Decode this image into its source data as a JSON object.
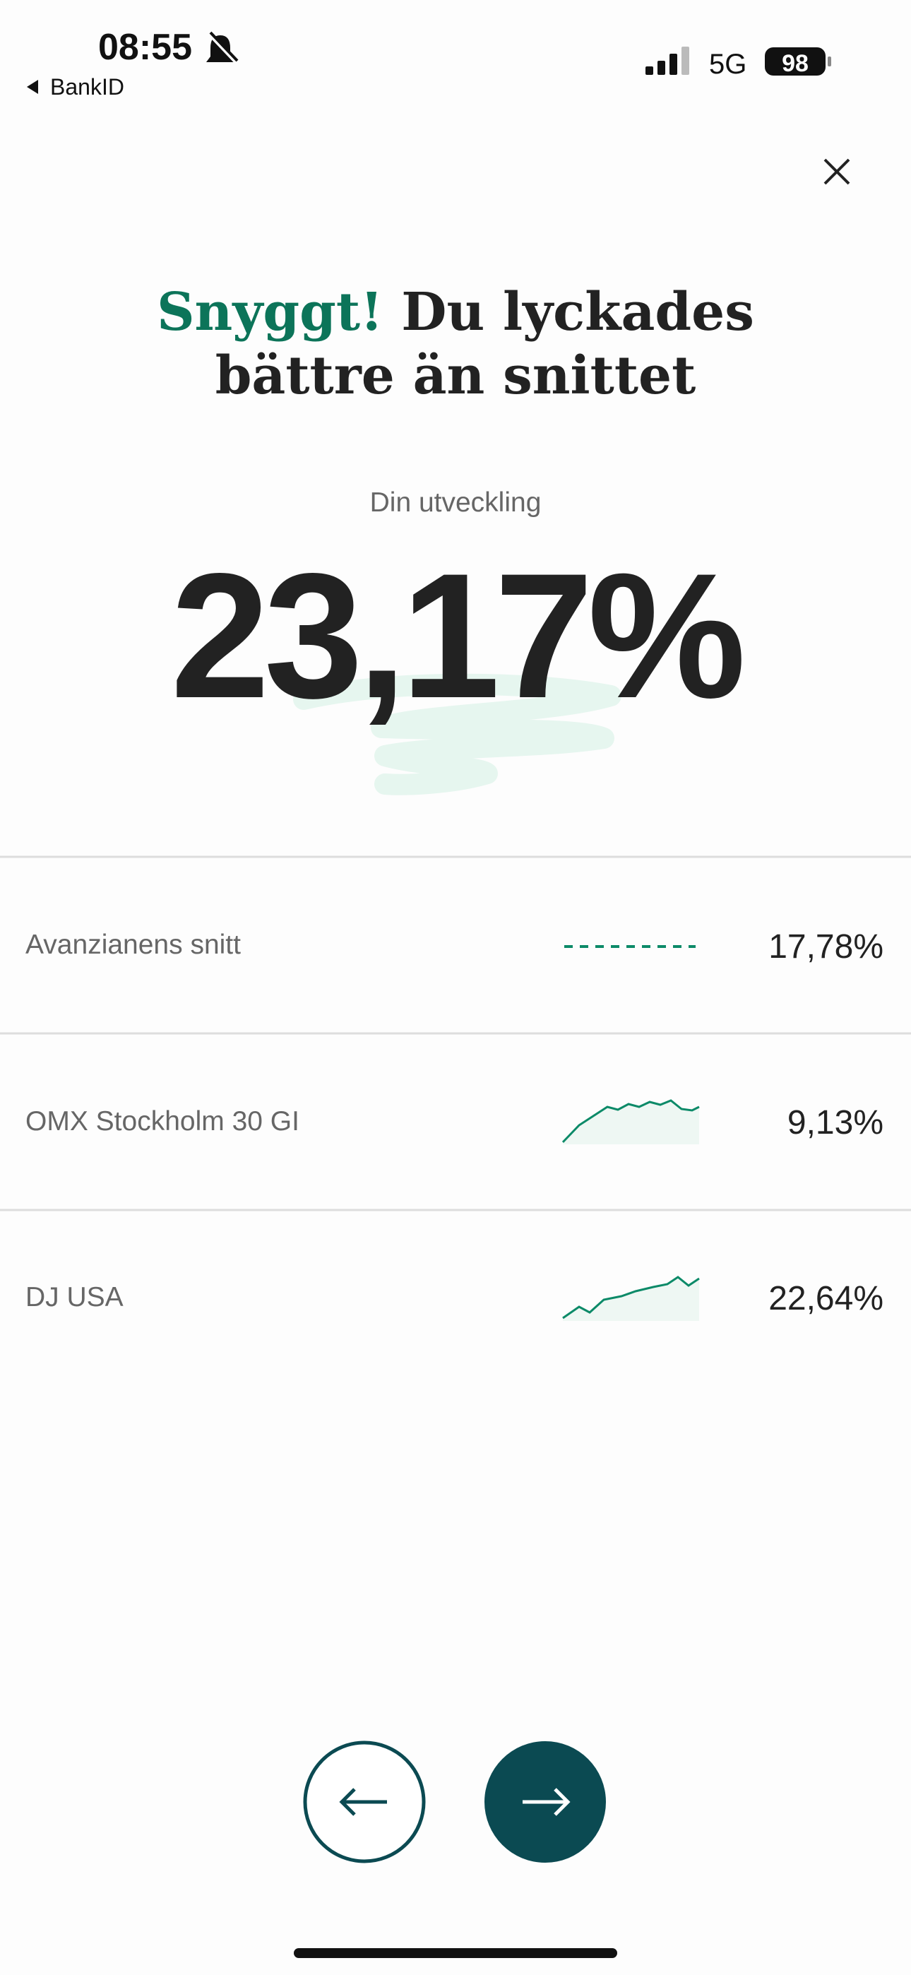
{
  "status_bar": {
    "time": "08:55",
    "back_app": "BankID",
    "network": "5G",
    "battery": "98"
  },
  "header": {
    "highlight": "Snyggt!",
    "title_line1": "Du lyckades",
    "title_line2": "bättre än snittet"
  },
  "result": {
    "label": "Din utveckling",
    "value": "23,17%"
  },
  "rows": [
    {
      "name": "Avanzianens snitt",
      "value": "17,78%"
    },
    {
      "name": "OMX Stockholm 30 GI",
      "value": "9,13%"
    },
    {
      "name": "DJ USA",
      "value": "22,64%"
    }
  ]
}
